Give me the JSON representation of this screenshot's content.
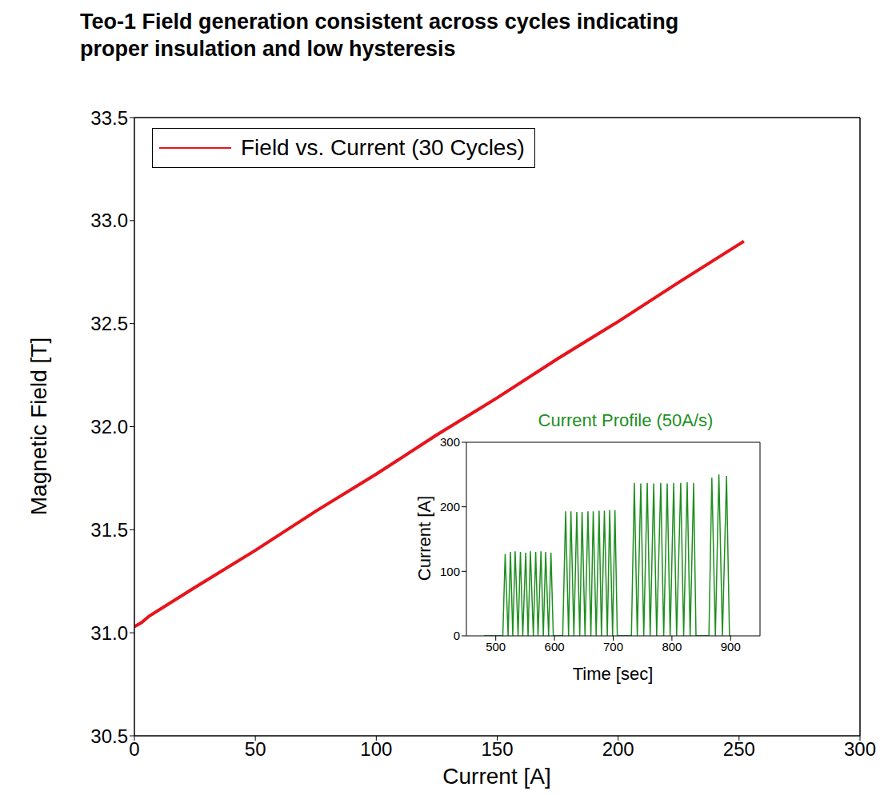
{
  "chart_data": [
    {
      "type": "line",
      "title": "Teo-1 Field generation consistent across cycles indicating proper insulation and low hysteresis",
      "x_label": "Current [A]",
      "y_label": "Magnetic Field [T]",
      "x": [
        0,
        3,
        6,
        25,
        50,
        75,
        100,
        125,
        150,
        175,
        200,
        225,
        252
      ],
      "series": [
        {
          "name": "Field vs. Current (30 Cycles)",
          "color": "#e8141b",
          "values": [
            31.03,
            31.05,
            31.08,
            31.22,
            31.4,
            31.59,
            31.77,
            31.96,
            32.14,
            32.33,
            32.51,
            32.7,
            32.9
          ]
        }
      ],
      "xlim": [
        0,
        300
      ],
      "xticks": [
        0,
        50,
        100,
        150,
        200,
        250,
        300
      ],
      "ylim": [
        30.5,
        33.5
      ],
      "yticks": [
        30.5,
        {
          "value": 31,
          "label": "31.0"
        },
        31.5,
        {
          "value": 32,
          "label": "32.0"
        },
        32.5,
        {
          "value": 33,
          "label": "33.0"
        },
        33.5
      ],
      "grid": false,
      "legend": "upper left"
    },
    {
      "type": "line",
      "title": "Current Profile (50A/s)",
      "x_label": "Time [sec]",
      "y_label": "Current [A]",
      "x": [
        480,
        508,
        512,
        516,
        521,
        525,
        529,
        533,
        538,
        542,
        546,
        551,
        555,
        559,
        564,
        568,
        572,
        577,
        581,
        585,
        590,
        594,
        598,
        610,
        614,
        619,
        624,
        628,
        633,
        638,
        643,
        647,
        652,
        657,
        662,
        666,
        671,
        676,
        680,
        685,
        690,
        694,
        699,
        703,
        707,
        728,
        731,
        736,
        741,
        747,
        752,
        758,
        763,
        769,
        774,
        781,
        786,
        792,
        797,
        803,
        808,
        815,
        820,
        826,
        831,
        837,
        841,
        860,
        863,
        868,
        874,
        880,
        886,
        893,
        898,
        900
      ],
      "values": [
        0,
        0,
        0,
        127,
        0,
        130,
        0,
        131,
        0,
        130,
        0,
        129,
        0,
        131,
        0,
        130,
        0,
        131,
        0,
        130,
        0,
        129,
        0,
        0,
        0,
        193,
        0,
        193,
        0,
        192,
        0,
        192,
        0,
        193,
        0,
        193,
        0,
        194,
        0,
        194,
        0,
        195,
        0,
        195,
        0,
        0,
        0,
        237,
        0,
        236,
        0,
        237,
        0,
        236,
        0,
        237,
        0,
        236,
        0,
        237,
        0,
        237,
        0,
        238,
        0,
        237,
        0,
        0,
        0,
        245,
        0,
        250,
        0,
        248,
        0,
        0
      ],
      "color": "#1f8f1f",
      "xlim": [
        450,
        950
      ],
      "xticks": [
        500,
        600,
        700,
        800,
        900
      ],
      "ylim": [
        0,
        300
      ],
      "yticks": [
        0,
        100,
        200,
        300
      ],
      "grid": false
    }
  ]
}
